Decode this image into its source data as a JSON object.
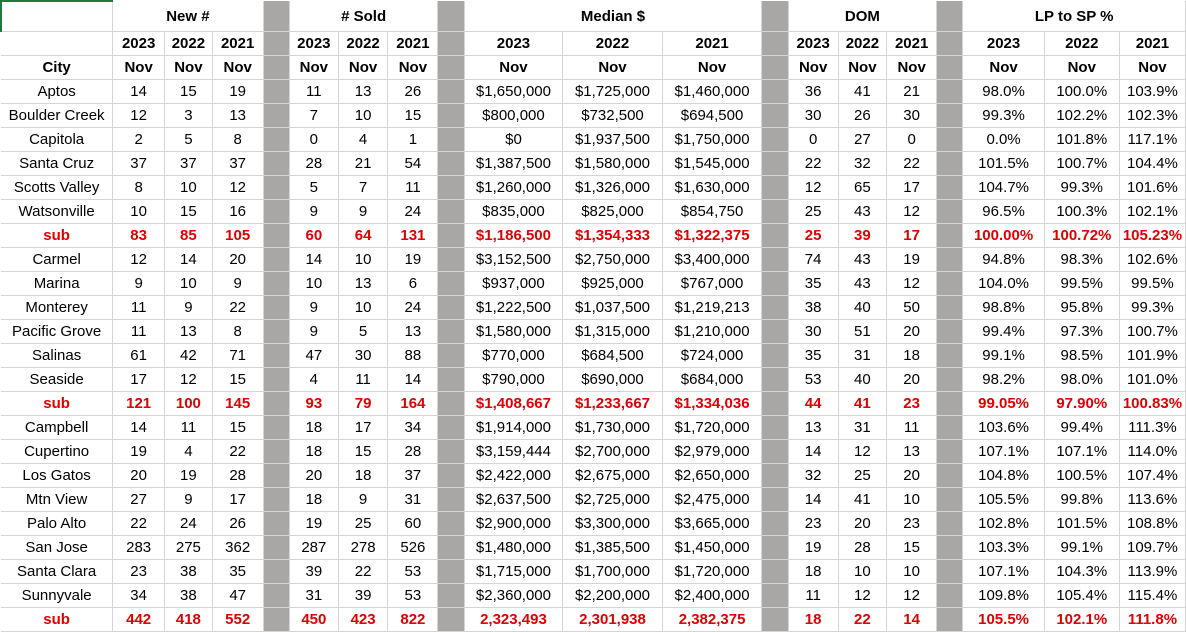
{
  "headers": {
    "groups": [
      "New #",
      "# Sold",
      "Median $",
      "DOM",
      "LP to SP %"
    ],
    "years": [
      "2023",
      "2022",
      "2021"
    ],
    "month": "Nov",
    "city": "City"
  },
  "rows": [
    {
      "city": "Aptos",
      "sub": false,
      "new": [
        "14",
        "15",
        "19"
      ],
      "sold": [
        "11",
        "13",
        "26"
      ],
      "median": [
        "$1,650,000",
        "$1,725,000",
        "$1,460,000"
      ],
      "dom": [
        "36",
        "41",
        "21"
      ],
      "lp": [
        "98.0%",
        "100.0%",
        "103.9%"
      ]
    },
    {
      "city": "Boulder Creek",
      "sub": false,
      "new": [
        "12",
        "3",
        "13"
      ],
      "sold": [
        "7",
        "10",
        "15"
      ],
      "median": [
        "$800,000",
        "$732,500",
        "$694,500"
      ],
      "dom": [
        "30",
        "26",
        "30"
      ],
      "lp": [
        "99.3%",
        "102.2%",
        "102.3%"
      ]
    },
    {
      "city": "Capitola",
      "sub": false,
      "new": [
        "2",
        "5",
        "8"
      ],
      "sold": [
        "0",
        "4",
        "1"
      ],
      "median": [
        "$0",
        "$1,937,500",
        "$1,750,000"
      ],
      "dom": [
        "0",
        "27",
        "0"
      ],
      "lp": [
        "0.0%",
        "101.8%",
        "117.1%"
      ]
    },
    {
      "city": "Santa Cruz",
      "sub": false,
      "new": [
        "37",
        "37",
        "37"
      ],
      "sold": [
        "28",
        "21",
        "54"
      ],
      "median": [
        "$1,387,500",
        "$1,580,000",
        "$1,545,000"
      ],
      "dom": [
        "22",
        "32",
        "22"
      ],
      "lp": [
        "101.5%",
        "100.7%",
        "104.4%"
      ]
    },
    {
      "city": "Scotts Valley",
      "sub": false,
      "new": [
        "8",
        "10",
        "12"
      ],
      "sold": [
        "5",
        "7",
        "11"
      ],
      "median": [
        "$1,260,000",
        "$1,326,000",
        "$1,630,000"
      ],
      "dom": [
        "12",
        "65",
        "17"
      ],
      "lp": [
        "104.7%",
        "99.3%",
        "101.6%"
      ]
    },
    {
      "city": "Watsonville",
      "sub": false,
      "new": [
        "10",
        "15",
        "16"
      ],
      "sold": [
        "9",
        "9",
        "24"
      ],
      "median": [
        "$835,000",
        "$825,000",
        "$854,750"
      ],
      "dom": [
        "25",
        "43",
        "12"
      ],
      "lp": [
        "96.5%",
        "100.3%",
        "102.1%"
      ]
    },
    {
      "city": "sub",
      "sub": true,
      "new": [
        "83",
        "85",
        "105"
      ],
      "sold": [
        "60",
        "64",
        "131"
      ],
      "median": [
        "$1,186,500",
        "$1,354,333",
        "$1,322,375"
      ],
      "dom": [
        "25",
        "39",
        "17"
      ],
      "lp": [
        "100.00%",
        "100.72%",
        "105.23%"
      ]
    },
    {
      "city": "Carmel",
      "sub": false,
      "new": [
        "12",
        "14",
        "20"
      ],
      "sold": [
        "14",
        "10",
        "19"
      ],
      "median": [
        "$3,152,500",
        "$2,750,000",
        "$3,400,000"
      ],
      "dom": [
        "74",
        "43",
        "19"
      ],
      "lp": [
        "94.8%",
        "98.3%",
        "102.6%"
      ]
    },
    {
      "city": "Marina",
      "sub": false,
      "new": [
        "9",
        "10",
        "9"
      ],
      "sold": [
        "10",
        "13",
        "6"
      ],
      "median": [
        "$937,000",
        "$925,000",
        "$767,000"
      ],
      "dom": [
        "35",
        "43",
        "12"
      ],
      "lp": [
        "104.0%",
        "99.5%",
        "99.5%"
      ]
    },
    {
      "city": "Monterey",
      "sub": false,
      "new": [
        "11",
        "9",
        "22"
      ],
      "sold": [
        "9",
        "10",
        "24"
      ],
      "median": [
        "$1,222,500",
        "$1,037,500",
        "$1,219,213"
      ],
      "dom": [
        "38",
        "40",
        "50"
      ],
      "lp": [
        "98.8%",
        "95.8%",
        "99.3%"
      ]
    },
    {
      "city": "Pacific Grove",
      "sub": false,
      "new": [
        "11",
        "13",
        "8"
      ],
      "sold": [
        "9",
        "5",
        "13"
      ],
      "median": [
        "$1,580,000",
        "$1,315,000",
        "$1,210,000"
      ],
      "dom": [
        "30",
        "51",
        "20"
      ],
      "lp": [
        "99.4%",
        "97.3%",
        "100.7%"
      ]
    },
    {
      "city": "Salinas",
      "sub": false,
      "new": [
        "61",
        "42",
        "71"
      ],
      "sold": [
        "47",
        "30",
        "88"
      ],
      "median": [
        "$770,000",
        "$684,500",
        "$724,000"
      ],
      "dom": [
        "35",
        "31",
        "18"
      ],
      "lp": [
        "99.1%",
        "98.5%",
        "101.9%"
      ]
    },
    {
      "city": "Seaside",
      "sub": false,
      "new": [
        "17",
        "12",
        "15"
      ],
      "sold": [
        "4",
        "11",
        "14"
      ],
      "median": [
        "$790,000",
        "$690,000",
        "$684,000"
      ],
      "dom": [
        "53",
        "40",
        "20"
      ],
      "lp": [
        "98.2%",
        "98.0%",
        "101.0%"
      ]
    },
    {
      "city": "sub",
      "sub": true,
      "new": [
        "121",
        "100",
        "145"
      ],
      "sold": [
        "93",
        "79",
        "164"
      ],
      "median": [
        "$1,408,667",
        "$1,233,667",
        "$1,334,036"
      ],
      "dom": [
        "44",
        "41",
        "23"
      ],
      "lp": [
        "99.05%",
        "97.90%",
        "100.83%"
      ]
    },
    {
      "city": "Campbell",
      "sub": false,
      "new": [
        "14",
        "11",
        "15"
      ],
      "sold": [
        "18",
        "17",
        "34"
      ],
      "median": [
        "$1,914,000",
        "$1,730,000",
        "$1,720,000"
      ],
      "dom": [
        "13",
        "31",
        "11"
      ],
      "lp": [
        "103.6%",
        "99.4%",
        "111.3%"
      ]
    },
    {
      "city": "Cupertino",
      "sub": false,
      "new": [
        "19",
        "4",
        "22"
      ],
      "sold": [
        "18",
        "15",
        "28"
      ],
      "median": [
        "$3,159,444",
        "$2,700,000",
        "$2,979,000"
      ],
      "dom": [
        "14",
        "12",
        "13"
      ],
      "lp": [
        "107.1%",
        "107.1%",
        "114.0%"
      ]
    },
    {
      "city": "Los Gatos",
      "sub": false,
      "new": [
        "20",
        "19",
        "28"
      ],
      "sold": [
        "20",
        "18",
        "37"
      ],
      "median": [
        "$2,422,000",
        "$2,675,000",
        "$2,650,000"
      ],
      "dom": [
        "32",
        "25",
        "20"
      ],
      "lp": [
        "104.8%",
        "100.5%",
        "107.4%"
      ]
    },
    {
      "city": "Mtn View",
      "sub": false,
      "new": [
        "27",
        "9",
        "17"
      ],
      "sold": [
        "18",
        "9",
        "31"
      ],
      "median": [
        "$2,637,500",
        "$2,725,000",
        "$2,475,000"
      ],
      "dom": [
        "14",
        "41",
        "10"
      ],
      "lp": [
        "105.5%",
        "99.8%",
        "113.6%"
      ]
    },
    {
      "city": "Palo Alto",
      "sub": false,
      "new": [
        "22",
        "24",
        "26"
      ],
      "sold": [
        "19",
        "25",
        "60"
      ],
      "median": [
        "$2,900,000",
        "$3,300,000",
        "$3,665,000"
      ],
      "dom": [
        "23",
        "20",
        "23"
      ],
      "lp": [
        "102.8%",
        "101.5%",
        "108.8%"
      ]
    },
    {
      "city": "San Jose",
      "sub": false,
      "new": [
        "283",
        "275",
        "362"
      ],
      "sold": [
        "287",
        "278",
        "526"
      ],
      "median": [
        "$1,480,000",
        "$1,385,500",
        "$1,450,000"
      ],
      "dom": [
        "19",
        "28",
        "15"
      ],
      "lp": [
        "103.3%",
        "99.1%",
        "109.7%"
      ]
    },
    {
      "city": "Santa Clara",
      "sub": false,
      "new": [
        "23",
        "38",
        "35"
      ],
      "sold": [
        "39",
        "22",
        "53"
      ],
      "median": [
        "$1,715,000",
        "$1,700,000",
        "$1,720,000"
      ],
      "dom": [
        "18",
        "10",
        "10"
      ],
      "lp": [
        "107.1%",
        "104.3%",
        "113.9%"
      ]
    },
    {
      "city": "Sunnyvale",
      "sub": false,
      "new": [
        "34",
        "38",
        "47"
      ],
      "sold": [
        "31",
        "39",
        "53"
      ],
      "median": [
        "$2,360,000",
        "$2,200,000",
        "$2,400,000"
      ],
      "dom": [
        "11",
        "12",
        "12"
      ],
      "lp": [
        "109.8%",
        "105.4%",
        "115.4%"
      ]
    },
    {
      "city": "sub",
      "sub": true,
      "new": [
        "442",
        "418",
        "552"
      ],
      "sold": [
        "450",
        "423",
        "822"
      ],
      "median": [
        "2,323,493",
        "2,301,938",
        "2,382,375"
      ],
      "dom": [
        "18",
        "22",
        "14"
      ],
      "lp": [
        "105.5%",
        "102.1%",
        "111.8%"
      ]
    }
  ]
}
